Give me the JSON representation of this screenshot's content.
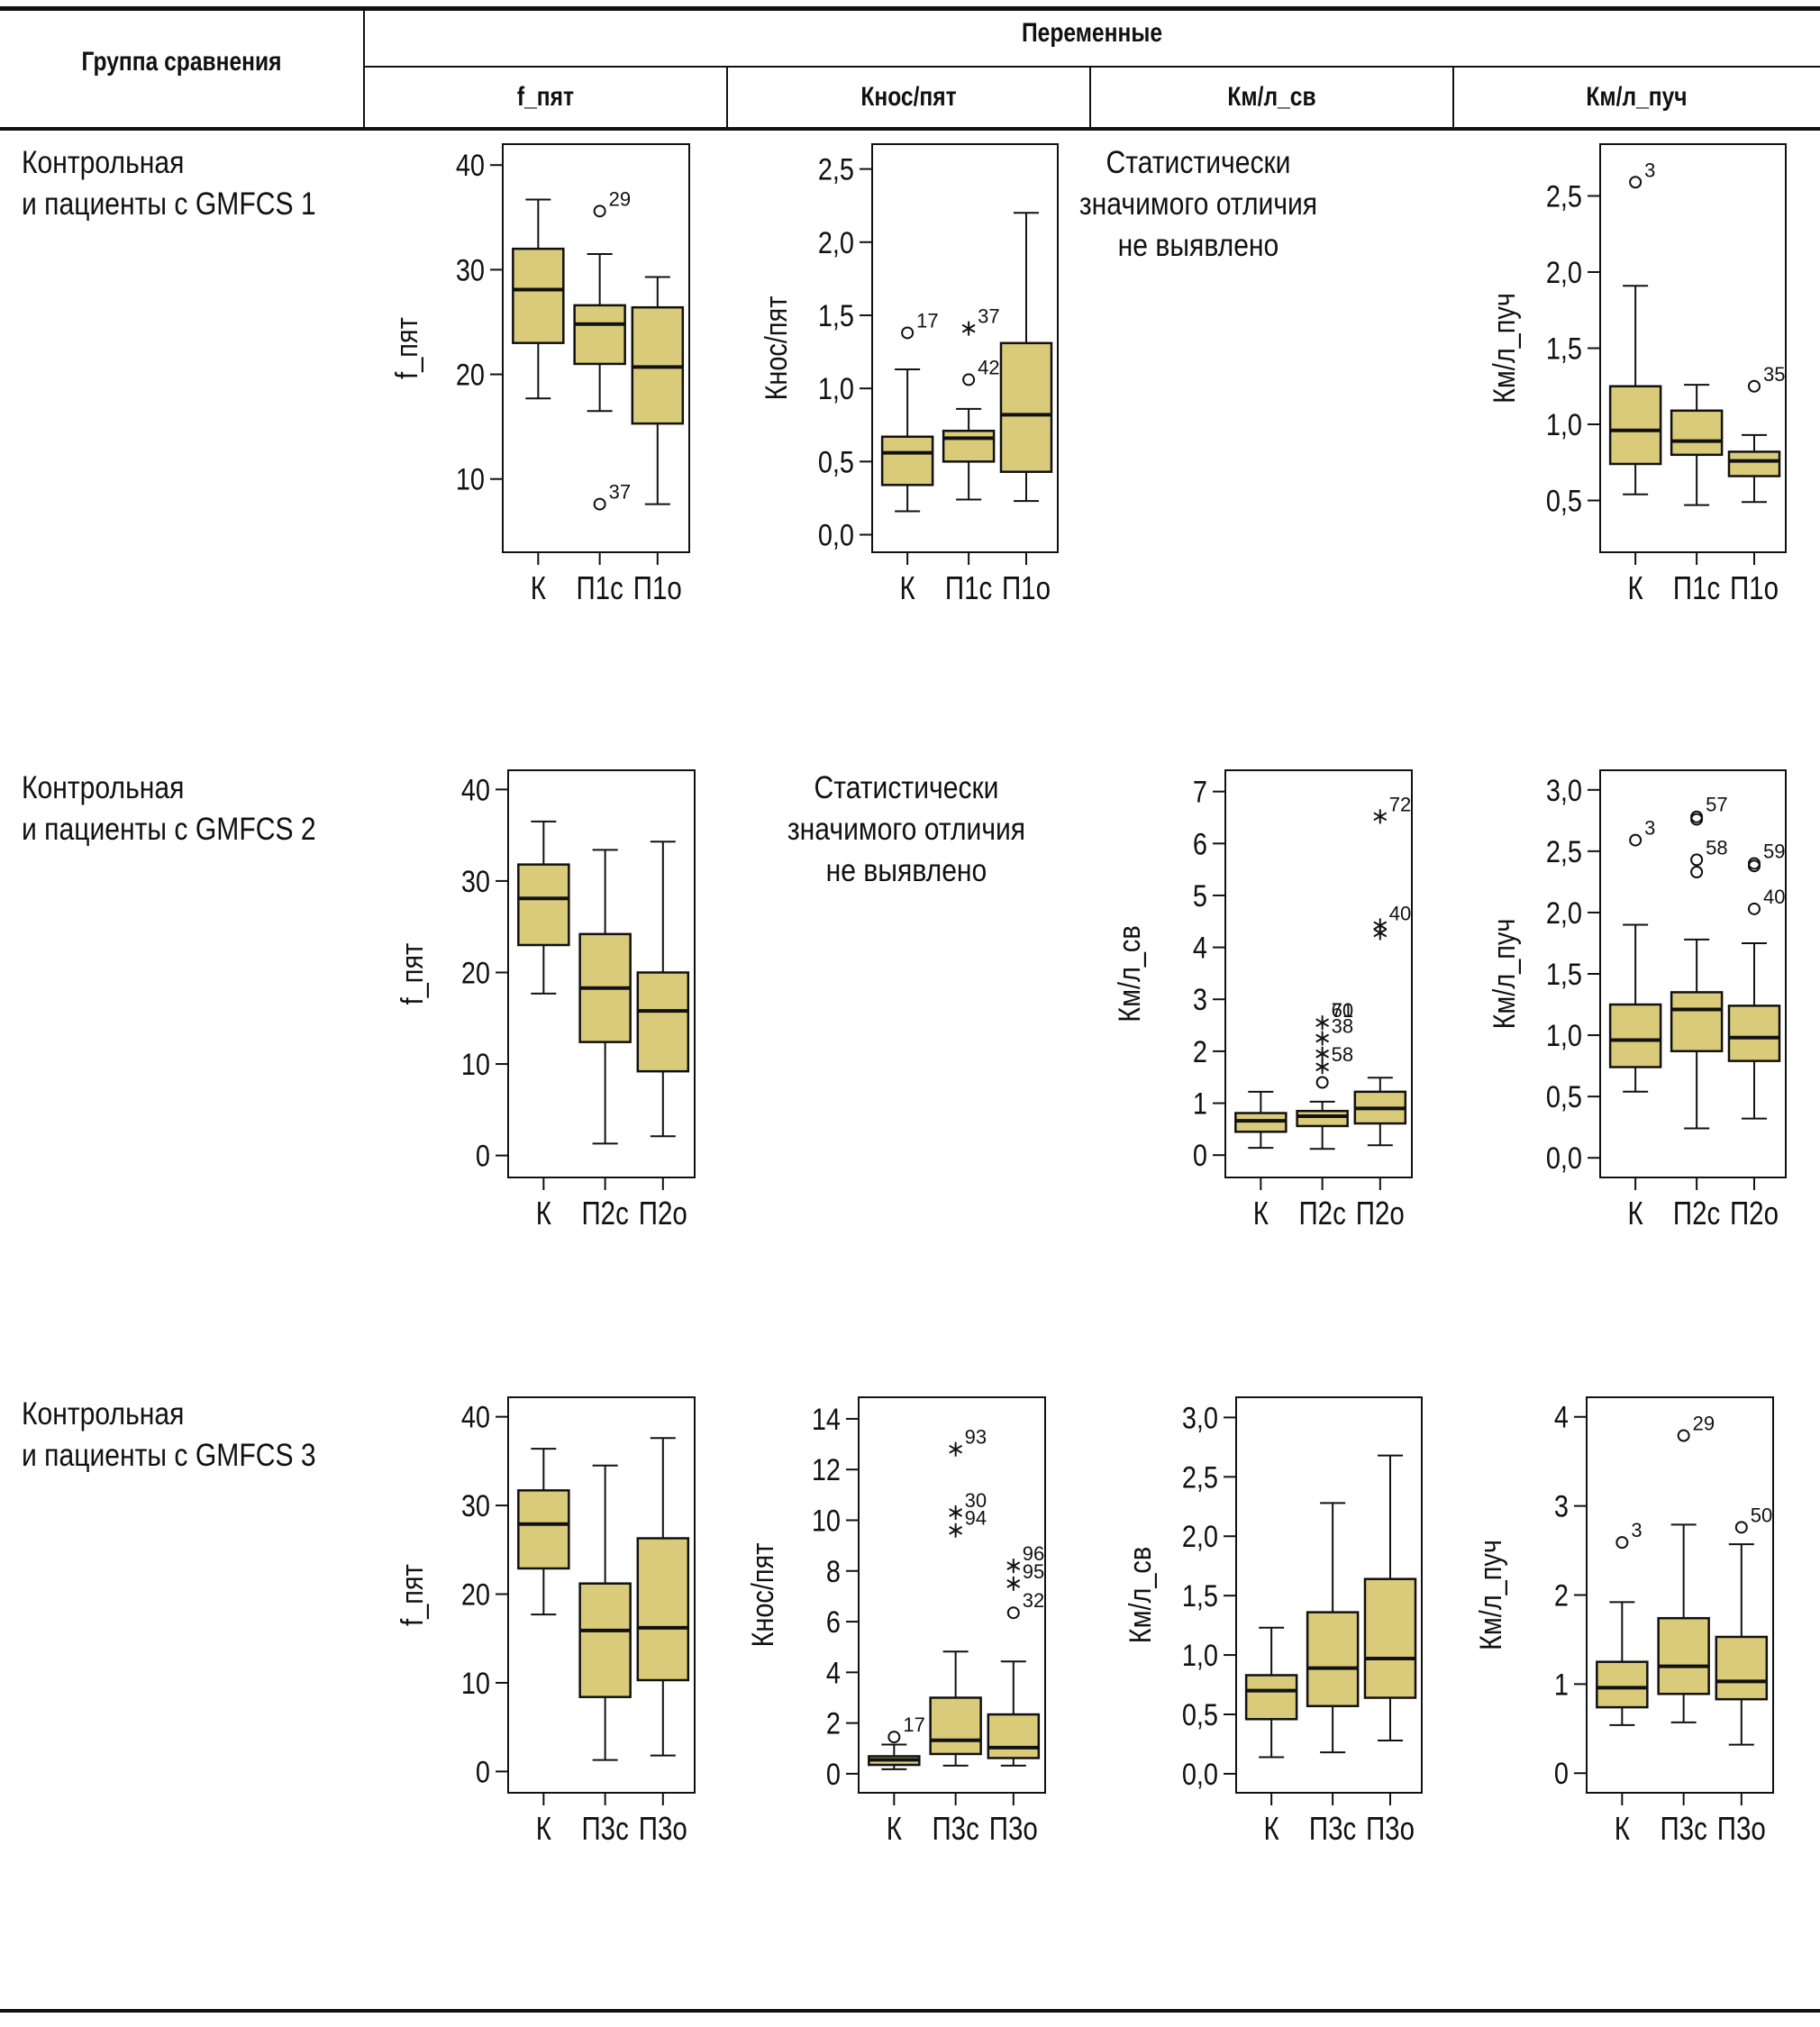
{
  "table": {
    "header": {
      "group_col": "Группа сравнения",
      "variables_title": "Переменные",
      "variables": [
        "f_пят",
        "Кнос/пят",
        "Км/л_св",
        "Км/л_пуч"
      ]
    },
    "rows": [
      {
        "label_line1": "Контрольная",
        "label_line2": "и пациенты с GMFCS 1"
      },
      {
        "label_line1": "Контрольная",
        "label_line2": "и пациенты с GMFCS 2"
      },
      {
        "label_line1": "Контрольная",
        "label_line2": "и пациенты с GMFCS 3"
      }
    ],
    "no_difference_text": [
      "Статистически",
      "значимого отличия",
      "не выявлено"
    ]
  },
  "colors": {
    "box_fill": "#DACB7A",
    "line": "#111111"
  },
  "chart_data": [
    {
      "id": "r1c1",
      "type": "boxplot",
      "row": 1,
      "variable": "f_пят",
      "ylabel": "f_пят",
      "ylim": [
        3,
        42
      ],
      "yticks": [
        10,
        20,
        30,
        40
      ],
      "tick_labels": [
        "10",
        "20",
        "30",
        "40"
      ],
      "categories": [
        "К",
        "П1с",
        "П1о"
      ],
      "boxes": [
        {
          "min": 17.7,
          "q1": 23.0,
          "median": 28.1,
          "q3": 32.0,
          "max": 36.7,
          "outliers": []
        },
        {
          "min": 16.5,
          "q1": 21.0,
          "median": 24.8,
          "q3": 26.6,
          "max": 31.5,
          "outliers": [
            {
              "value": 35.6,
              "label": "29",
              "symbol": "circle"
            },
            {
              "value": 7.6,
              "label": "37",
              "symbol": "circle"
            }
          ]
        },
        {
          "min": 7.6,
          "q1": 15.3,
          "median": 20.7,
          "q3": 26.4,
          "max": 29.3,
          "outliers": []
        }
      ]
    },
    {
      "id": "r1c2",
      "type": "boxplot",
      "row": 1,
      "variable": "Кнос/пят",
      "ylabel": "Кнос/пят",
      "ylim": [
        -0.12,
        2.67
      ],
      "yticks": [
        0,
        0.5,
        1,
        1.5,
        2,
        2.5
      ],
      "tick_labels": [
        "0,0",
        "0,5",
        "1,0",
        "1,5",
        "2,0",
        "2,5"
      ],
      "categories": [
        "К",
        "П1с",
        "П1о"
      ],
      "boxes": [
        {
          "min": 0.16,
          "q1": 0.34,
          "median": 0.56,
          "q3": 0.67,
          "max": 1.13,
          "outliers": [
            {
              "value": 1.38,
              "label": "17",
              "symbol": "circle"
            }
          ]
        },
        {
          "min": 0.24,
          "q1": 0.5,
          "median": 0.66,
          "q3": 0.71,
          "max": 0.86,
          "outliers": [
            {
              "value": 1.41,
              "label": "37",
              "symbol": "star"
            },
            {
              "value": 1.06,
              "label": "42",
              "symbol": "circle"
            }
          ]
        },
        {
          "min": 0.23,
          "q1": 0.43,
          "median": 0.82,
          "q3": 1.31,
          "max": 2.2,
          "outliers": []
        }
      ]
    },
    {
      "id": "r1c3",
      "type": "none",
      "row": 1,
      "variable": "Км/л_св",
      "note": "no_difference"
    },
    {
      "id": "r1c4",
      "type": "boxplot",
      "row": 1,
      "variable": "Км/л_пуч",
      "ylabel": "Км/л_пуч",
      "ylim": [
        0.16,
        2.84
      ],
      "yticks": [
        0.5,
        1,
        1.5,
        2,
        2.5
      ],
      "tick_labels": [
        "0,5",
        "1,0",
        "1,5",
        "2,0",
        "2,5"
      ],
      "categories": [
        "К",
        "П1с",
        "П1о"
      ],
      "boxes": [
        {
          "min": 0.54,
          "q1": 0.74,
          "median": 0.96,
          "q3": 1.25,
          "max": 1.91,
          "outliers": [
            {
              "value": 2.59,
              "label": "3",
              "symbol": "circle"
            }
          ]
        },
        {
          "min": 0.47,
          "q1": 0.8,
          "median": 0.89,
          "q3": 1.09,
          "max": 1.26,
          "outliers": []
        },
        {
          "min": 0.49,
          "q1": 0.66,
          "median": 0.76,
          "q3": 0.82,
          "max": 0.93,
          "outliers": [
            {
              "value": 1.25,
              "label": "35",
              "symbol": "circle"
            }
          ]
        }
      ]
    },
    {
      "id": "r2c1",
      "type": "boxplot",
      "row": 2,
      "variable": "f_пят",
      "ylabel": "f_пят",
      "ylim": [
        -2.4,
        42.1
      ],
      "yticks": [
        0,
        10,
        20,
        30,
        40
      ],
      "tick_labels": [
        "0",
        "10",
        "20",
        "30",
        "40"
      ],
      "categories": [
        "К",
        "П2с",
        "П2о"
      ],
      "boxes": [
        {
          "min": 17.7,
          "q1": 23.0,
          "median": 28.1,
          "q3": 31.8,
          "max": 36.5,
          "outliers": []
        },
        {
          "min": 1.3,
          "q1": 12.4,
          "median": 18.3,
          "q3": 24.2,
          "max": 33.4,
          "outliers": []
        },
        {
          "min": 2.1,
          "q1": 9.2,
          "median": 15.8,
          "q3": 20.0,
          "max": 34.3,
          "outliers": []
        }
      ]
    },
    {
      "id": "r2c2",
      "type": "none",
      "row": 2,
      "variable": "Кнос/пят",
      "note": "no_difference"
    },
    {
      "id": "r2c3",
      "type": "boxplot",
      "row": 2,
      "variable": "Км/л_св",
      "ylabel": "Км/л_св",
      "ylim": [
        -0.43,
        7.41
      ],
      "yticks": [
        0,
        1,
        2,
        3,
        4,
        5,
        6,
        7
      ],
      "tick_labels": [
        "0",
        "1",
        "2",
        "3",
        "4",
        "5",
        "6",
        "7"
      ],
      "categories": [
        "К",
        "П2с",
        "П2о"
      ],
      "boxes": [
        {
          "min": 0.14,
          "q1": 0.45,
          "median": 0.66,
          "q3": 0.81,
          "max": 1.22,
          "outliers": []
        },
        {
          "min": 0.12,
          "q1": 0.56,
          "median": 0.75,
          "q3": 0.85,
          "max": 1.03,
          "outliers": [
            {
              "value": 1.4,
              "label": "",
              "symbol": "circle"
            },
            {
              "value": 1.7,
              "label": "58",
              "symbol": "star"
            },
            {
              "value": 1.95,
              "label": "",
              "symbol": "star"
            },
            {
              "value": 2.25,
              "label": "38",
              "symbol": "star"
            },
            {
              "value": 2.55,
              "label": "61",
              "symbol": "star"
            },
            {
              "value": 2.55,
              "label": "70",
              "symbol": "none"
            }
          ]
        },
        {
          "min": 0.19,
          "q1": 0.61,
          "median": 0.9,
          "q3": 1.22,
          "max": 1.49,
          "outliers": [
            {
              "value": 6.52,
              "label": "72",
              "symbol": "star"
            },
            {
              "value": 4.42,
              "label": "40",
              "symbol": "star"
            },
            {
              "value": 4.28,
              "label": "",
              "symbol": "star"
            }
          ]
        }
      ]
    },
    {
      "id": "r2c4",
      "type": "boxplot",
      "row": 2,
      "variable": "Км/л_пуч",
      "ylabel": "Км/л_пуч",
      "ylim": [
        -0.16,
        3.16
      ],
      "yticks": [
        0,
        0.5,
        1,
        1.5,
        2,
        2.5,
        3
      ],
      "tick_labels": [
        "0,0",
        "0,5",
        "1,0",
        "1,5",
        "2,0",
        "2,5",
        "3,0"
      ],
      "categories": [
        "К",
        "П2с",
        "П2о"
      ],
      "boxes": [
        {
          "min": 0.54,
          "q1": 0.74,
          "median": 0.96,
          "q3": 1.25,
          "max": 1.9,
          "outliers": [
            {
              "value": 2.59,
              "label": "3",
              "symbol": "circle"
            }
          ]
        },
        {
          "min": 0.24,
          "q1": 0.87,
          "median": 1.21,
          "q3": 1.35,
          "max": 1.78,
          "outliers": [
            {
              "value": 2.78,
              "label": "57",
              "symbol": "circle"
            },
            {
              "value": 2.76,
              "label": "",
              "symbol": "circle"
            },
            {
              "value": 2.43,
              "label": "58",
              "symbol": "circle"
            },
            {
              "value": 2.33,
              "label": "",
              "symbol": "circle"
            }
          ]
        },
        {
          "min": 0.32,
          "q1": 0.79,
          "median": 0.98,
          "q3": 1.24,
          "max": 1.75,
          "outliers": [
            {
              "value": 2.4,
              "label": "59",
              "symbol": "circle"
            },
            {
              "value": 2.38,
              "label": "",
              "symbol": "circle"
            },
            {
              "value": 2.03,
              "label": "40",
              "symbol": "circle"
            }
          ]
        }
      ]
    },
    {
      "id": "r3c1",
      "type": "boxplot",
      "row": 3,
      "variable": "f_пят",
      "ylabel": "f_пят",
      "ylim": [
        -2.4,
        42.2
      ],
      "yticks": [
        0,
        10,
        20,
        30,
        40
      ],
      "tick_labels": [
        "0",
        "10",
        "20",
        "30",
        "40"
      ],
      "categories": [
        "К",
        "П3с",
        "П3о"
      ],
      "boxes": [
        {
          "min": 17.7,
          "q1": 22.9,
          "median": 27.9,
          "q3": 31.7,
          "max": 36.4,
          "outliers": []
        },
        {
          "min": 1.3,
          "q1": 8.4,
          "median": 15.9,
          "q3": 21.2,
          "max": 34.5,
          "outliers": []
        },
        {
          "min": 1.8,
          "q1": 10.3,
          "median": 16.2,
          "q3": 26.3,
          "max": 37.6,
          "outliers": []
        }
      ]
    },
    {
      "id": "r3c2",
      "type": "boxplot",
      "row": 3,
      "variable": "Кнос/пят",
      "ylabel": "Кнос/пят",
      "ylim": [
        -0.75,
        14.85
      ],
      "yticks": [
        0,
        2,
        4,
        6,
        8,
        10,
        12,
        14
      ],
      "tick_labels": [
        "0",
        "2",
        "4",
        "6",
        "8",
        "10",
        "12",
        "14"
      ],
      "categories": [
        "К",
        "П3с",
        "П3о"
      ],
      "boxes": [
        {
          "min": 0.18,
          "q1": 0.35,
          "median": 0.55,
          "q3": 0.69,
          "max": 1.15,
          "outliers": [
            {
              "value": 1.45,
              "label": "17",
              "symbol": "circle"
            }
          ]
        },
        {
          "min": 0.32,
          "q1": 0.78,
          "median": 1.32,
          "q3": 3.0,
          "max": 4.82,
          "outliers": [
            {
              "value": 12.8,
              "label": "93",
              "symbol": "star"
            },
            {
              "value": 10.3,
              "label": "30",
              "symbol": "star"
            },
            {
              "value": 9.6,
              "label": "94",
              "symbol": "star"
            }
          ]
        },
        {
          "min": 0.32,
          "q1": 0.62,
          "median": 1.03,
          "q3": 2.34,
          "max": 4.43,
          "outliers": [
            {
              "value": 8.2,
              "label": "96",
              "symbol": "star"
            },
            {
              "value": 7.5,
              "label": "95",
              "symbol": "star"
            },
            {
              "value": 6.35,
              "label": "32",
              "symbol": "circle"
            }
          ]
        }
      ]
    },
    {
      "id": "r3c3",
      "type": "boxplot",
      "row": 3,
      "variable": "Км/л_св",
      "ylabel": "Км/л_св",
      "ylim": [
        -0.16,
        3.17
      ],
      "yticks": [
        0,
        0.5,
        1,
        1.5,
        2,
        2.5,
        3
      ],
      "tick_labels": [
        "0,0",
        "0,5",
        "1,0",
        "1,5",
        "2,0",
        "2,5",
        "3,0"
      ],
      "categories": [
        "К",
        "П3с",
        "П3о"
      ],
      "boxes": [
        {
          "min": 0.14,
          "q1": 0.46,
          "median": 0.7,
          "q3": 0.83,
          "max": 1.23,
          "outliers": []
        },
        {
          "min": 0.18,
          "q1": 0.57,
          "median": 0.89,
          "q3": 1.36,
          "max": 2.28,
          "outliers": []
        },
        {
          "min": 0.28,
          "q1": 0.64,
          "median": 0.97,
          "q3": 1.64,
          "max": 2.68,
          "outliers": []
        }
      ]
    },
    {
      "id": "r3c4",
      "type": "boxplot",
      "row": 3,
      "variable": "Км/л_пуч",
      "ylabel": "Км/л_пуч",
      "ylim": [
        -0.22,
        4.22
      ],
      "yticks": [
        0,
        1,
        2,
        3,
        4
      ],
      "tick_labels": [
        "0",
        "1",
        "2",
        "3",
        "4"
      ],
      "categories": [
        "К",
        "П3с",
        "П3о"
      ],
      "boxes": [
        {
          "min": 0.54,
          "q1": 0.74,
          "median": 0.96,
          "q3": 1.25,
          "max": 1.92,
          "outliers": [
            {
              "value": 2.59,
              "label": "3",
              "symbol": "circle"
            }
          ]
        },
        {
          "min": 0.57,
          "q1": 0.89,
          "median": 1.2,
          "q3": 1.74,
          "max": 2.79,
          "outliers": [
            {
              "value": 3.79,
              "label": "29",
              "symbol": "circle"
            }
          ]
        },
        {
          "min": 0.32,
          "q1": 0.83,
          "median": 1.03,
          "q3": 1.53,
          "max": 2.57,
          "outliers": [
            {
              "value": 2.76,
              "label": "50",
              "symbol": "circle"
            }
          ]
        }
      ]
    }
  ]
}
